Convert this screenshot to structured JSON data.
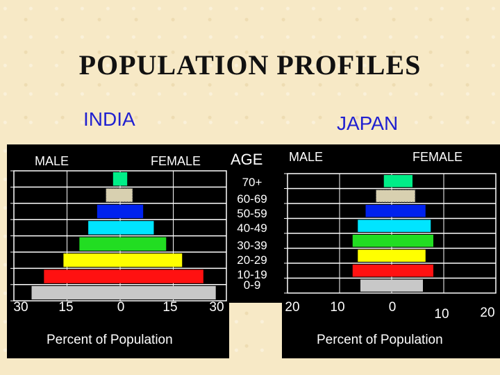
{
  "page": {
    "title": "POPULATION PROFILES",
    "age_header": "AGE",
    "age_groups": [
      "70+",
      "60-69",
      "50-59",
      "40-49",
      "30-39",
      "20-29",
      "10-19",
      "0-9"
    ]
  },
  "chart_data": [
    {
      "type": "bar",
      "title": "INDIA",
      "left_label": "MALE",
      "right_label": "FEMALE",
      "xlabel": "Percent of Population",
      "x_ticks": [
        "30",
        "15",
        "0",
        "15",
        "30"
      ],
      "xlim": [
        -30,
        30
      ],
      "categories": [
        "70+",
        "60-69",
        "50-59",
        "40-49",
        "30-39",
        "20-29",
        "10-19",
        "0-9"
      ],
      "series": [
        {
          "name": "MALE",
          "values": [
            2,
            4,
            6.5,
            9,
            11.5,
            16,
            21.5,
            25
          ]
        },
        {
          "name": "FEMALE",
          "values": [
            2,
            3.5,
            6.5,
            9.5,
            13,
            17.5,
            23.5,
            27
          ]
        }
      ],
      "colors": [
        "#00ee88",
        "#d8d0b0",
        "#0022ee",
        "#00e5ff",
        "#22dd22",
        "#ffff00",
        "#ff1111",
        "#c8c8c8"
      ]
    },
    {
      "type": "bar",
      "title": "JAPAN",
      "left_label": "MALE",
      "right_label": "FEMALE",
      "xlabel": "Percent of Population",
      "x_ticks": [
        "20",
        "10",
        "0",
        "10",
        "20"
      ],
      "xlim": [
        -20,
        20
      ],
      "categories": [
        "70+",
        "60-69",
        "50-59",
        "40-49",
        "30-39",
        "20-29",
        "10-19",
        "0-9"
      ],
      "series": [
        {
          "name": "MALE",
          "values": [
            1.5,
            3,
            5,
            6.5,
            7.5,
            6.5,
            7.5,
            6
          ]
        },
        {
          "name": "FEMALE",
          "values": [
            4,
            4.5,
            6.5,
            7.5,
            8,
            6.5,
            8,
            6
          ]
        }
      ],
      "colors": [
        "#00ee88",
        "#d8d0b0",
        "#0022ee",
        "#00e5ff",
        "#22dd22",
        "#ffff00",
        "#ff1111",
        "#c8c8c8"
      ]
    }
  ]
}
